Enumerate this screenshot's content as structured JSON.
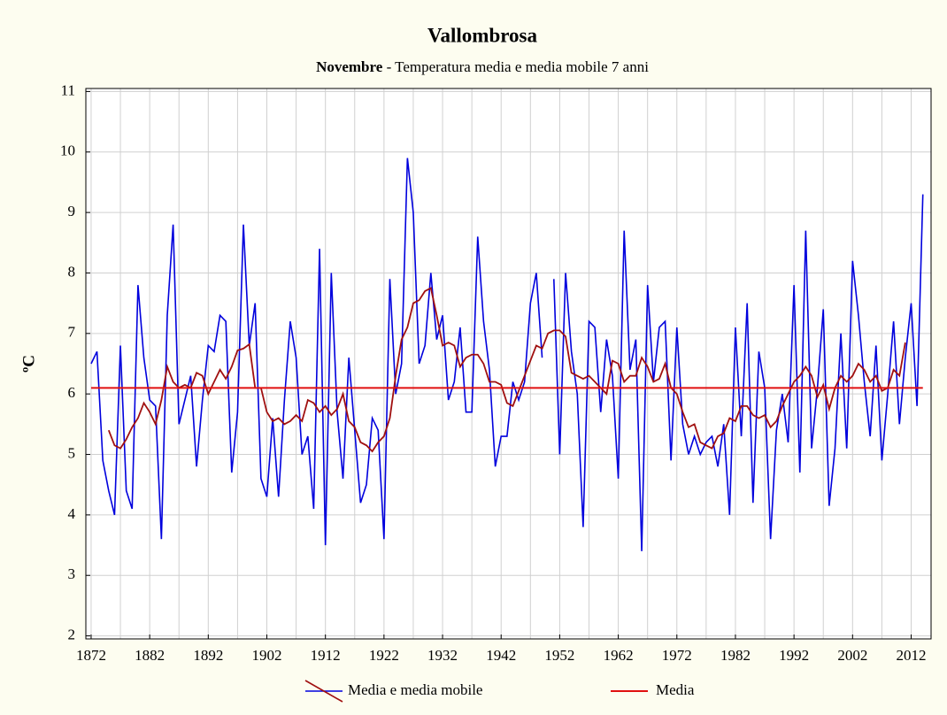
{
  "chart_data": {
    "type": "line",
    "title": "Vallombrosa",
    "subtitle_bold": "Novembre",
    "subtitle": " - Temperatura media e media mobile 7 anni",
    "y_label": "ºC",
    "x": [
      1872,
      1873,
      1874,
      1875,
      1876,
      1877,
      1878,
      1879,
      1880,
      1881,
      1882,
      1883,
      1884,
      1885,
      1886,
      1887,
      1888,
      1889,
      1890,
      1891,
      1892,
      1893,
      1894,
      1895,
      1896,
      1897,
      1898,
      1899,
      1900,
      1901,
      1902,
      1903,
      1904,
      1905,
      1906,
      1907,
      1908,
      1909,
      1910,
      1911,
      1912,
      1913,
      1914,
      1915,
      1916,
      1917,
      1918,
      1919,
      1920,
      1921,
      1922,
      1923,
      1924,
      1925,
      1926,
      1927,
      1928,
      1929,
      1930,
      1931,
      1932,
      1933,
      1934,
      1935,
      1936,
      1937,
      1938,
      1939,
      1940,
      1941,
      1942,
      1943,
      1944,
      1945,
      1946,
      1947,
      1948,
      1949,
      1950,
      1951,
      1952,
      1953,
      1954,
      1955,
      1956,
      1957,
      1958,
      1959,
      1960,
      1961,
      1962,
      1963,
      1964,
      1965,
      1966,
      1967,
      1968,
      1969,
      1970,
      1971,
      1972,
      1973,
      1974,
      1975,
      1976,
      1977,
      1978,
      1979,
      1980,
      1981,
      1982,
      1983,
      1984,
      1985,
      1986,
      1987,
      1988,
      1989,
      1990,
      1991,
      1992,
      1993,
      1994,
      1995,
      1996,
      1997,
      1998,
      1999,
      2000,
      2001,
      2002,
      2003,
      2004,
      2005,
      2006,
      2007,
      2008,
      2009,
      2010,
      2011,
      2012,
      2013,
      2014
    ],
    "series": [
      {
        "name": "Media e media mobile",
        "color": "#0000dd",
        "values": [
          6.5,
          6.7,
          4.9,
          4.4,
          4.0,
          6.8,
          4.4,
          4.1,
          7.8,
          6.6,
          5.9,
          5.8,
          3.6,
          7.3,
          8.8,
          5.5,
          5.9,
          6.3,
          4.8,
          5.9,
          6.8,
          6.7,
          7.3,
          7.2,
          4.7,
          5.7,
          8.8,
          6.8,
          7.5,
          4.6,
          4.3,
          5.6,
          4.3,
          5.9,
          7.2,
          6.6,
          5.0,
          5.3,
          4.1,
          8.4,
          3.5,
          8.0,
          5.7,
          4.6,
          6.6,
          5.4,
          4.2,
          4.5,
          5.6,
          5.4,
          3.6,
          7.9,
          6.0,
          6.5,
          9.9,
          9.0,
          6.5,
          6.8,
          8.0,
          6.9,
          7.3,
          5.9,
          6.2,
          7.1,
          5.7,
          5.7,
          8.6,
          7.2,
          6.4,
          4.8,
          5.3,
          5.3,
          6.2,
          5.9,
          6.2,
          7.5,
          8.0,
          6.6,
          null,
          7.9,
          5.0,
          8.0,
          6.7,
          6.0,
          3.8,
          7.2,
          7.1,
          5.7,
          6.9,
          6.3,
          4.6,
          8.7,
          6.4,
          6.9,
          3.4,
          7.8,
          6.2,
          7.1,
          7.2,
          4.9,
          7.1,
          5.5,
          5.0,
          5.3,
          5.0,
          5.2,
          5.3,
          4.8,
          5.5,
          4.0,
          7.1,
          5.3,
          7.5,
          4.2,
          6.7,
          6.1,
          3.6,
          5.4,
          6.0,
          5.2,
          7.8,
          4.7,
          8.7,
          5.1,
          6.1,
          7.4,
          4.15,
          5.1,
          7.0,
          5.1,
          8.2,
          7.3,
          6.2,
          5.3,
          6.8,
          4.9,
          6.0,
          7.2,
          5.5,
          6.6,
          7.5,
          5.8,
          9.3
        ]
      },
      {
        "color": "#a01010",
        "values": [
          null,
          null,
          null,
          5.4,
          5.15,
          5.1,
          5.25,
          5.45,
          5.6,
          5.85,
          5.7,
          5.5,
          5.9,
          6.45,
          6.2,
          6.1,
          6.15,
          6.1,
          6.35,
          6.3,
          6.0,
          6.2,
          6.4,
          6.25,
          6.45,
          6.72,
          6.75,
          6.82,
          6.1,
          6.1,
          5.7,
          5.55,
          5.6,
          5.5,
          5.55,
          5.65,
          5.55,
          5.9,
          5.85,
          5.7,
          5.8,
          5.65,
          5.75,
          6.0,
          5.55,
          5.45,
          5.2,
          5.15,
          5.05,
          5.2,
          5.3,
          5.6,
          6.3,
          6.9,
          7.1,
          7.5,
          7.55,
          7.7,
          7.75,
          7.3,
          6.8,
          6.85,
          6.8,
          6.45,
          6.6,
          6.65,
          6.65,
          6.5,
          6.2,
          6.2,
          6.15,
          5.85,
          5.8,
          6.05,
          6.3,
          6.55,
          6.8,
          6.75,
          7.0,
          7.05,
          7.05,
          6.95,
          6.35,
          6.3,
          6.25,
          6.3,
          6.2,
          6.1,
          6.0,
          6.55,
          6.5,
          6.2,
          6.3,
          6.3,
          6.6,
          6.45,
          6.2,
          6.25,
          6.5,
          6.1,
          6.0,
          5.7,
          5.45,
          5.5,
          5.2,
          5.15,
          5.1,
          5.3,
          5.35,
          5.6,
          5.55,
          5.8,
          5.8,
          5.65,
          5.6,
          5.65,
          5.45,
          5.55,
          5.8,
          6.0,
          6.2,
          6.3,
          6.45,
          6.3,
          5.95,
          6.15,
          5.75,
          6.1,
          6.3,
          6.2,
          6.3,
          6.5,
          6.4,
          6.2,
          6.3,
          6.05,
          6.1,
          6.4,
          6.3,
          6.85,
          null,
          null,
          null
        ]
      }
    ],
    "mean": {
      "name": "Media",
      "color": "#e01010",
      "value": 6.1
    },
    "xlim": [
      1871.1,
      2015.4
    ],
    "xticks": [
      1872,
      1882,
      1892,
      1902,
      1912,
      1922,
      1932,
      1942,
      1952,
      1962,
      1972,
      1982,
      1992,
      2002,
      2012
    ],
    "ylim": [
      1.95,
      11.05
    ],
    "yticks": [
      2,
      3,
      4,
      5,
      6,
      7,
      8,
      9,
      10,
      11
    ],
    "grid": true
  }
}
